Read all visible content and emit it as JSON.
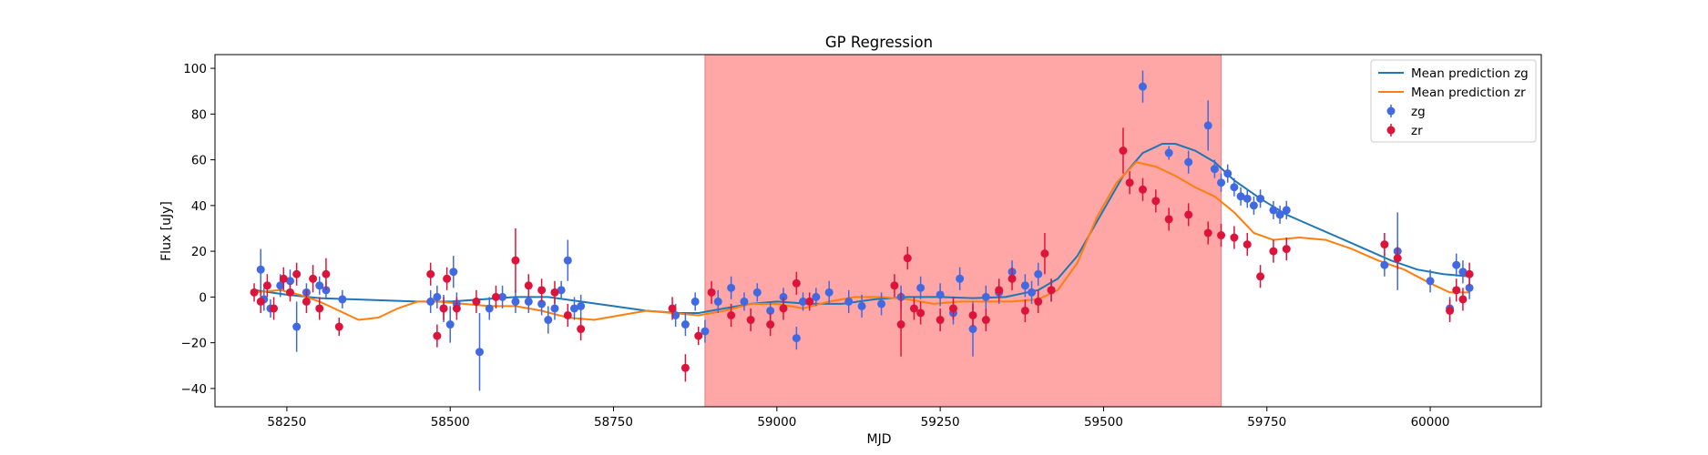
{
  "chart_data": {
    "type": "scatter",
    "title": "GP Regression",
    "xlabel": "MJD",
    "ylabel": "Flux [uJy]",
    "xlim": [
      58140,
      60170
    ],
    "ylim": [
      -48,
      106
    ],
    "xticks": [
      58250,
      58500,
      58750,
      59000,
      59250,
      59500,
      59750,
      60000
    ],
    "yticks": [
      -40,
      -20,
      0,
      20,
      40,
      60,
      80,
      100
    ],
    "grid": false,
    "legend": "top-right",
    "shaded_region": {
      "x": [
        58890,
        59680
      ],
      "color": "#ffa6a6"
    },
    "series": [
      {
        "name": "Mean prediction zg",
        "kind": "line",
        "color": "#1f77b4",
        "x": [
          58200,
          58250,
          58300,
          58350,
          58400,
          58450,
          58500,
          58550,
          58600,
          58650,
          58700,
          58750,
          58800,
          58850,
          58880,
          58920,
          58960,
          59000,
          59050,
          59100,
          59150,
          59200,
          59250,
          59300,
          59350,
          59400,
          59430,
          59460,
          59500,
          59530,
          59560,
          59590,
          59610,
          59640,
          59670,
          59700,
          59740,
          59780,
          59820,
          59860,
          59900,
          59940,
          59980,
          60020,
          60060
        ],
        "y": [
          3,
          1,
          -0.5,
          -1,
          -1.5,
          -2,
          -2,
          -1,
          0,
          0,
          -2,
          -4,
          -6,
          -7,
          -7,
          -5,
          -3,
          -2,
          -3,
          -3,
          -1,
          0,
          0,
          -0.5,
          0,
          3,
          8,
          18,
          38,
          53,
          63,
          67,
          67,
          64,
          59,
          51,
          43,
          36,
          31,
          26,
          21,
          16,
          12,
          10,
          9
        ]
      },
      {
        "name": "Mean prediction zr",
        "kind": "line",
        "color": "#ff7f0e",
        "x": [
          58200,
          58240,
          58270,
          58300,
          58330,
          58360,
          58390,
          58420,
          58450,
          58480,
          58520,
          58560,
          58600,
          58640,
          58680,
          58720,
          58760,
          58800,
          58840,
          58880,
          58920,
          58960,
          59000,
          59040,
          59080,
          59120,
          59160,
          59200,
          59240,
          59280,
          59320,
          59360,
          59400,
          59430,
          59460,
          59490,
          59520,
          59550,
          59580,
          59610,
          59640,
          59670,
          59700,
          59730,
          59760,
          59800,
          59840,
          59880,
          59920,
          59960,
          60000,
          60030,
          60060
        ],
        "y": [
          2,
          3,
          1,
          -2,
          -6,
          -10,
          -9,
          -5,
          -2,
          -2,
          -3,
          -4,
          -4,
          -6,
          -9,
          -10,
          -8,
          -6,
          -7,
          -8,
          -6,
          -3,
          -3,
          -5,
          -2,
          0,
          0,
          -1,
          -3,
          -2,
          -2,
          -2,
          -1,
          3,
          15,
          35,
          50,
          59,
          57,
          53,
          48,
          44,
          37,
          28,
          25,
          26,
          25,
          21,
          16,
          12,
          6,
          2,
          2
        ]
      },
      {
        "name": "zg",
        "kind": "errorbar",
        "color": "#4169e1",
        "x": [
          58210,
          58215,
          58225,
          58240,
          58255,
          58265,
          58280,
          58300,
          58310,
          58335,
          58470,
          58480,
          58490,
          58500,
          58505,
          58510,
          58545,
          58560,
          58580,
          58600,
          58620,
          58640,
          58650,
          58660,
          58670,
          58680,
          58690,
          58700,
          58845,
          58860,
          58875,
          58890,
          58910,
          58930,
          58950,
          58970,
          58990,
          59010,
          59030,
          59040,
          59060,
          59080,
          59110,
          59130,
          59160,
          59190,
          59220,
          59250,
          59270,
          59280,
          59300,
          59320,
          59340,
          59360,
          59380,
          59390,
          59400,
          59420,
          59560,
          59600,
          59630,
          59660,
          59670,
          59680,
          59690,
          59700,
          59710,
          59720,
          59730,
          59740,
          59760,
          59770,
          59780,
          59930,
          59950,
          60000,
          60030,
          60040,
          60050,
          60060
        ],
        "y": [
          12,
          -1,
          -5,
          5,
          7,
          -13,
          2,
          5,
          3,
          -1,
          -2,
          0,
          -5,
          -12,
          11,
          -3,
          -24,
          -5,
          0,
          -2,
          -2,
          -3,
          -10,
          -5,
          3,
          16,
          -5,
          -4,
          -8,
          -12,
          -2,
          -15,
          -2,
          4,
          -2,
          2,
          -6,
          0,
          -18,
          -2,
          0,
          2,
          -2,
          -4,
          -3,
          0,
          4,
          1,
          -7,
          8,
          -14,
          0,
          2,
          11,
          5,
          2,
          10,
          3,
          92,
          63,
          59,
          75,
          56,
          50,
          54,
          48,
          44,
          43,
          40,
          43,
          38,
          36,
          38,
          14,
          20,
          7,
          -5,
          14,
          11,
          4
        ],
        "yerr": [
          9,
          5,
          4,
          5,
          5,
          11,
          4,
          4,
          4,
          4,
          5,
          5,
          6,
          8,
          7,
          5,
          17,
          5,
          5,
          5,
          5,
          5,
          6,
          5,
          4,
          9,
          5,
          5,
          5,
          5,
          4,
          5,
          5,
          5,
          4,
          4,
          4,
          4,
          5,
          4,
          4,
          5,
          5,
          5,
          5,
          5,
          5,
          5,
          5,
          5,
          12,
          5,
          5,
          5,
          5,
          5,
          5,
          5,
          7,
          3,
          5,
          11,
          4,
          4,
          4,
          4,
          4,
          4,
          4,
          4,
          4,
          4,
          4,
          5,
          17,
          5,
          5,
          5,
          5,
          5
        ]
      },
      {
        "name": "zr",
        "kind": "errorbar",
        "color": "#dc143c",
        "x": [
          58200,
          58210,
          58220,
          58230,
          58245,
          58255,
          58265,
          58280,
          58290,
          58300,
          58310,
          58330,
          58470,
          58480,
          58490,
          58495,
          58510,
          58540,
          58570,
          58600,
          58620,
          58640,
          58660,
          58680,
          58700,
          58840,
          58860,
          58880,
          58900,
          58930,
          58960,
          58990,
          59010,
          59030,
          59050,
          59180,
          59190,
          59200,
          59210,
          59220,
          59250,
          59270,
          59300,
          59320,
          59340,
          59360,
          59380,
          59400,
          59410,
          59420,
          59530,
          59540,
          59560,
          59580,
          59600,
          59630,
          59660,
          59680,
          59700,
          59720,
          59740,
          59760,
          59780,
          59930,
          59950,
          60030,
          60040,
          60050,
          60060
        ],
        "y": [
          2,
          -2,
          5,
          -5,
          8,
          2,
          10,
          -2,
          8,
          -5,
          10,
          -13,
          10,
          -17,
          -5,
          8,
          -5,
          -2,
          0,
          16,
          5,
          3,
          2,
          -8,
          -14,
          -5,
          -31,
          -17,
          2,
          -8,
          -10,
          -12,
          -5,
          6,
          -2,
          5,
          -12,
          17,
          -5,
          -7,
          -10,
          -5,
          -8,
          -10,
          3,
          8,
          -6,
          -2,
          19,
          3,
          64,
          50,
          47,
          42,
          34,
          36,
          28,
          27,
          26,
          23,
          9,
          20,
          21,
          23,
          17,
          -6,
          3,
          -1,
          10
        ],
        "yerr": [
          4,
          5,
          5,
          5,
          5,
          4,
          5,
          5,
          6,
          5,
          7,
          4,
          5,
          5,
          5,
          5,
          5,
          5,
          5,
          14,
          5,
          5,
          5,
          5,
          5,
          5,
          6,
          4,
          5,
          5,
          5,
          5,
          5,
          5,
          4,
          5,
          14,
          5,
          5,
          5,
          5,
          5,
          5,
          5,
          5,
          5,
          5,
          5,
          9,
          5,
          10,
          5,
          5,
          5,
          5,
          5,
          5,
          5,
          5,
          5,
          5,
          5,
          5,
          5,
          5,
          5,
          5,
          5,
          5
        ]
      }
    ]
  }
}
